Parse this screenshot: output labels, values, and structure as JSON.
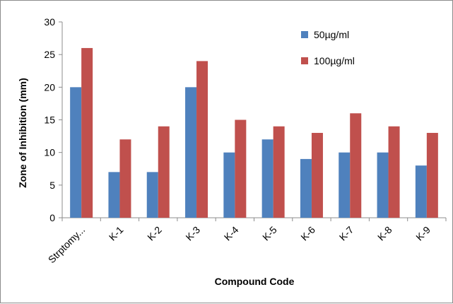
{
  "chart_data": {
    "type": "bar",
    "title": "",
    "xlabel": "Compound Code",
    "ylabel": "Zone of Inhibition (mm)",
    "categories": [
      "Strptomy...",
      "K-1",
      "K-2",
      "K-3",
      "K-4",
      "K-5",
      "K-6",
      "K-7",
      "K-8",
      "K-9"
    ],
    "series": [
      {
        "name": "50µg/ml",
        "color": "#4f81bd",
        "values": [
          20,
          7,
          7,
          20,
          10,
          12,
          9,
          10,
          10,
          8
        ]
      },
      {
        "name": "100µg/ml",
        "color": "#c0504d",
        "values": [
          26,
          12,
          14,
          24,
          15,
          14,
          13,
          16,
          14,
          13
        ]
      }
    ],
    "ylim": [
      0,
      30
    ],
    "yticks": [
      0,
      5,
      10,
      15,
      20,
      25,
      30
    ],
    "grid": false,
    "legend_position": "top-right"
  }
}
